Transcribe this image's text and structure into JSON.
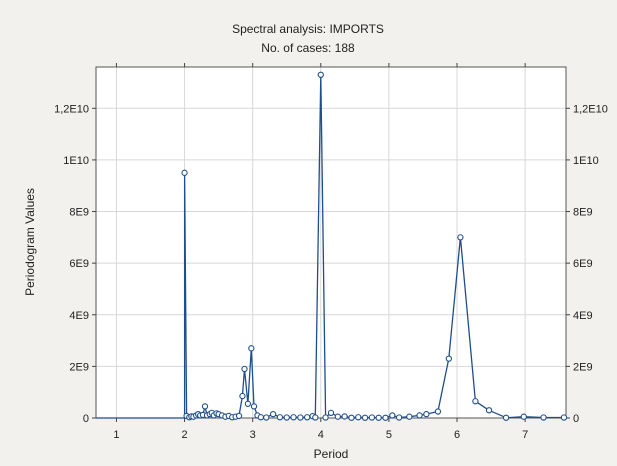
{
  "chart_data": {
    "type": "line",
    "title": "Spectral analysis: IMPORTS",
    "subtitle": "No. of cases: 188",
    "xlabel": "Period",
    "ylabel": "Periodogram Values",
    "xlim": [
      0.7,
      7.6
    ],
    "ylim": [
      0,
      13600000000
    ],
    "xticks": [
      1,
      2,
      3,
      4,
      5,
      6,
      7
    ],
    "xtick_labels": [
      "1",
      "2",
      "3",
      "4",
      "5",
      "6",
      "7"
    ],
    "yticks": [
      0,
      2000000000,
      4000000000,
      6000000000,
      8000000000,
      10000000000,
      12000000000
    ],
    "ytick_labels": [
      "0",
      "2E9",
      "4E9",
      "6E9",
      "8E9",
      "1E10",
      "1,2E10"
    ],
    "grid": true,
    "line_color": "#1f4e8c",
    "series": [
      {
        "x": [
          0.7,
          2.0,
          2.0,
          2.03,
          2.07,
          2.1,
          2.13,
          2.17,
          2.2,
          2.23,
          2.27,
          2.3,
          2.33,
          2.37,
          2.4,
          2.43,
          2.47,
          2.5,
          2.55,
          2.6,
          2.65,
          2.7,
          2.75,
          2.8,
          2.85,
          2.88,
          2.93,
          2.98,
          3.02,
          3.07,
          3.12,
          3.2,
          3.3,
          3.4,
          3.5,
          3.6,
          3.7,
          3.8,
          3.88,
          3.92,
          4.0,
          4.07,
          4.15,
          4.25,
          4.35,
          4.45,
          4.55,
          4.65,
          4.75,
          4.85,
          4.95,
          5.05,
          5.15,
          5.3,
          5.45,
          5.55,
          5.72,
          5.88,
          6.05,
          6.27,
          6.47,
          6.72,
          6.98,
          7.27,
          7.57,
          7.6
        ],
        "y": [
          0,
          0,
          9500000000,
          80000000,
          30000000,
          60000000,
          50000000,
          100000000,
          150000000,
          100000000,
          120000000,
          450000000,
          100000000,
          150000000,
          200000000,
          100000000,
          180000000,
          150000000,
          100000000,
          50000000,
          80000000,
          30000000,
          50000000,
          80000000,
          850000000,
          1900000000,
          550000000,
          2700000000,
          450000000,
          100000000,
          30000000,
          20000000,
          150000000,
          30000000,
          20000000,
          30000000,
          20000000,
          30000000,
          70000000,
          20000000,
          13300000000,
          20000000,
          200000000,
          50000000,
          60000000,
          10000000,
          30000000,
          10000000,
          20000000,
          10000000,
          10000000,
          100000000,
          20000000,
          50000000,
          100000000,
          150000000,
          250000000,
          2300000000,
          7000000000,
          650000000,
          300000000,
          10000000,
          50000000,
          20000000,
          20000000,
          0
        ]
      }
    ]
  }
}
